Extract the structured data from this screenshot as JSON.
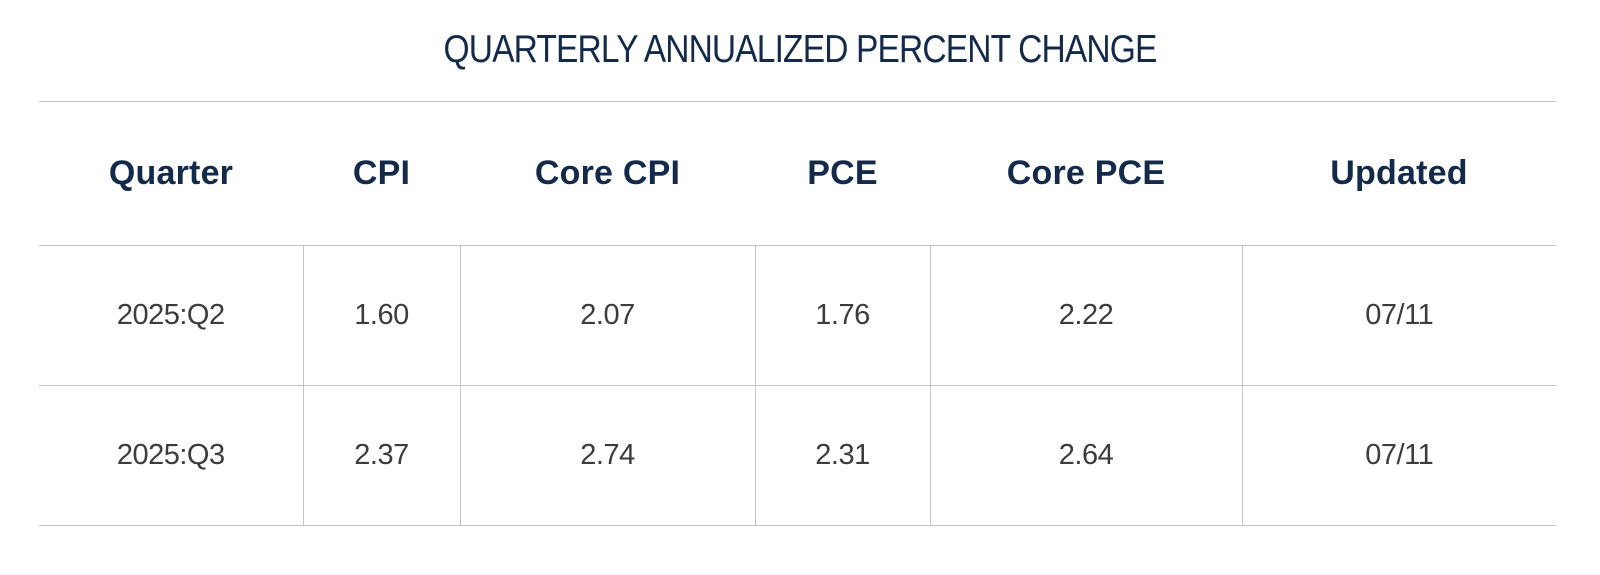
{
  "chart_data": {
    "type": "table",
    "title": "QUARTERLY ANNUALIZED PERCENT CHANGE",
    "columns": [
      "Quarter",
      "CPI",
      "Core CPI",
      "PCE",
      "Core PCE",
      "Updated"
    ],
    "rows": [
      [
        "2025:Q2",
        "1.60",
        "2.07",
        "1.76",
        "2.22",
        "07/11"
      ],
      [
        "2025:Q3",
        "2.37",
        "2.74",
        "2.31",
        "2.64",
        "07/11"
      ]
    ]
  },
  "colors": {
    "title": "#142a4a",
    "header_text": "#142a4a",
    "cell_text": "#3c3c3c",
    "rule": "#c4c4c4",
    "background": "#ffffff"
  }
}
